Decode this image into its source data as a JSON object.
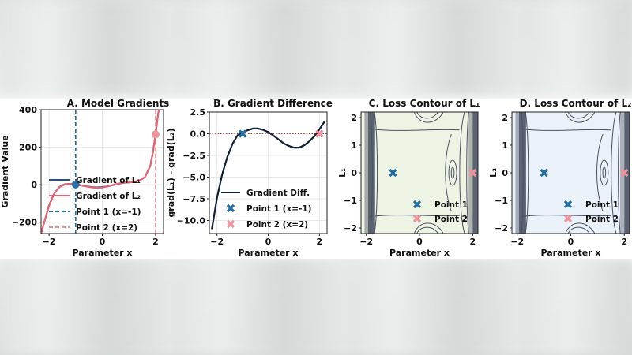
{
  "chart_data": [
    {
      "panel": "A",
      "type": "line",
      "title": "A. Model Gradients",
      "xlabel": "Parameter x",
      "ylabel": "Gradient Value",
      "xlim": [
        -2.3,
        2.3
      ],
      "ylim": [
        -260,
        400
      ],
      "xticks": [
        -2,
        0,
        2
      ],
      "xtick_labels": [
        "−2",
        "0",
        "2"
      ],
      "yticks": [
        -200,
        0,
        200,
        400
      ],
      "ytick_labels": [
        "−200",
        "0",
        "200",
        "400"
      ],
      "grid": true,
      "legend_position": "lower-right",
      "series": [
        {
          "name": "Gradient of L₁",
          "color": "#1f4e9c",
          "x": [
            -2.3,
            -2.1,
            -2.0,
            -1.8,
            -1.6,
            -1.4,
            -1.2,
            -1.0,
            -0.8,
            -0.6,
            -0.4,
            -0.2,
            0.0,
            0.2,
            0.4,
            0.6,
            0.8,
            1.0,
            1.2,
            1.4,
            1.6,
            1.8,
            1.9,
            2.0,
            2.1,
            2.3
          ],
          "y": [
            -260,
            -160,
            -110,
            -45,
            -10,
            3,
            5,
            2,
            -3,
            -8,
            -12,
            -14,
            -12,
            -8,
            -2,
            5,
            10,
            12,
            15,
            22,
            40,
            100,
            170,
            270,
            380,
            520
          ]
        },
        {
          "name": "Gradient of L₂",
          "color": "#e8636f",
          "x": [
            -2.3,
            -2.1,
            -2.0,
            -1.8,
            -1.6,
            -1.4,
            -1.2,
            -1.0,
            -0.8,
            -0.6,
            -0.4,
            -0.2,
            0.0,
            0.2,
            0.4,
            0.6,
            0.8,
            1.0,
            1.2,
            1.4,
            1.6,
            1.8,
            1.9,
            2.0,
            2.1,
            2.3
          ],
          "y": [
            -260,
            -160,
            -112,
            -46,
            -11,
            2,
            4,
            1,
            -4,
            -9,
            -14,
            -17,
            -15,
            -9,
            -2,
            6,
            11,
            13,
            16,
            22,
            40,
            100,
            170,
            268,
            380,
            520
          ]
        }
      ],
      "vlines": [
        {
          "name": "Point 1 (x=-1)",
          "x": -1,
          "color": "#1f6ea3"
        },
        {
          "name": "Point 2 (x=2)",
          "x": 2,
          "color": "#f0929b"
        }
      ],
      "markers": [
        {
          "x": -1,
          "y": 2,
          "color": "#2a6fa8"
        },
        {
          "x": 2,
          "y": 268,
          "color": "#f0929b"
        }
      ]
    },
    {
      "panel": "B",
      "type": "line",
      "title": "B. Gradient Difference",
      "xlabel": "Parameter x",
      "ylabel": "grad(L₁) - grad(L₂)",
      "xlim": [
        -2.3,
        2.3
      ],
      "ylim": [
        -11.5,
        2.5
      ],
      "xticks": [
        -2,
        0,
        2
      ],
      "xtick_labels": [
        "−2",
        "0",
        "2"
      ],
      "yticks": [
        2.5,
        0.0,
        -2.5,
        -5.0,
        -7.5,
        -10.0
      ],
      "ytick_labels": [
        "2.5",
        "0.0",
        "−2.5",
        "−5.0",
        "−7.5",
        "−10.0"
      ],
      "grid": true,
      "legend_position": "lower-right",
      "hline": {
        "y": 0,
        "color": "#c0392b"
      },
      "series": [
        {
          "name": "Gradient Diff.",
          "color": "#10203a",
          "x": [
            -2.2,
            -2.0,
            -1.8,
            -1.6,
            -1.4,
            -1.2,
            -1.0,
            -0.8,
            -0.6,
            -0.4,
            -0.2,
            0.0,
            0.2,
            0.4,
            0.6,
            0.8,
            1.0,
            1.2,
            1.4,
            1.6,
            1.8,
            2.0,
            2.2
          ],
          "y": [
            -11,
            -7.4,
            -4.7,
            -2.7,
            -1.2,
            -0.2,
            0.2,
            0.4,
            0.6,
            0.6,
            0.45,
            0.2,
            -0.2,
            -0.65,
            -1.1,
            -1.4,
            -1.6,
            -1.6,
            -1.35,
            -0.9,
            -0.3,
            0.5,
            1.4
          ]
        }
      ],
      "points": [
        {
          "name": "Point 1 (x=-1)",
          "x": -1,
          "y": 0.0,
          "color": "#1f6ea3"
        },
        {
          "name": "Point 2 (x=2)",
          "x": 2,
          "y": 0.0,
          "color": "#f0929b"
        }
      ]
    },
    {
      "panel": "C",
      "type": "contour",
      "title": "C. Loss Contour of L₁",
      "xlabel": "Parameter x",
      "ylabel": "L₁",
      "xlim": [
        -2.2,
        2.2
      ],
      "ylim": [
        -2.2,
        2.2
      ],
      "xticks": [
        -2,
        0,
        2
      ],
      "xtick_labels": [
        "−2",
        "0",
        "2"
      ],
      "yticks": [
        2,
        1,
        0,
        -1,
        -2
      ],
      "ytick_labels": [
        "2",
        "1",
        "0",
        "−1",
        "−2"
      ],
      "fill_color": "#eef4e4",
      "edge_color": "#4a5263",
      "legend_position": "lower-right",
      "points": [
        {
          "name": "Point 1",
          "x": -1,
          "y": 0,
          "color": "#1f6ea3"
        },
        {
          "name": "Point 2",
          "x": 2,
          "y": 0,
          "color": "#f0929b"
        }
      ]
    },
    {
      "panel": "D",
      "type": "contour",
      "title": "D. Loss Contour of L₂",
      "xlabel": "Parameter x",
      "ylabel": "L₂",
      "xlim": [
        -2.2,
        2.2
      ],
      "ylim": [
        -2.2,
        2.2
      ],
      "xticks": [
        -2,
        0,
        2
      ],
      "xtick_labels": [
        "−2",
        "0",
        "2"
      ],
      "yticks": [
        2,
        1,
        0,
        -1,
        -2
      ],
      "ytick_labels": [
        "2",
        "1",
        "0",
        "−1",
        "−2"
      ],
      "fill_color": "#eaf1f8",
      "edge_color": "#4a5263",
      "legend_position": "lower-right",
      "points": [
        {
          "name": "Point 1",
          "x": -1,
          "y": 0,
          "color": "#1f6ea3"
        },
        {
          "name": "Point 2",
          "x": 2,
          "y": 0,
          "color": "#f0929b"
        }
      ]
    }
  ]
}
